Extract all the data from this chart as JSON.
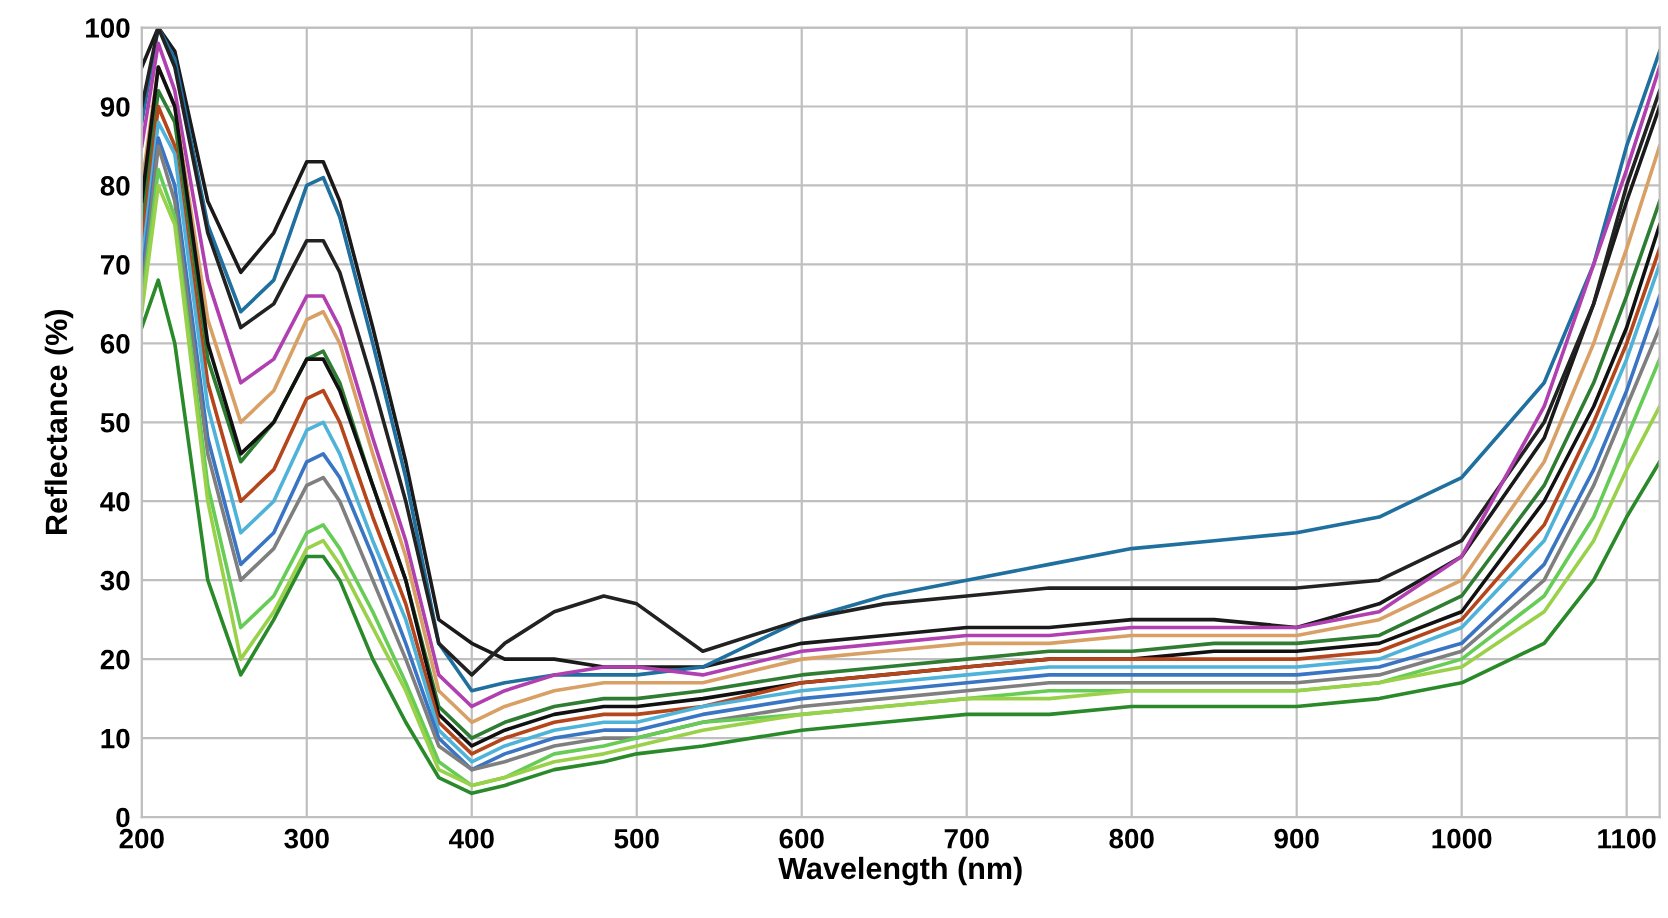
{
  "chart_data": {
    "type": "line",
    "xlabel": "Wavelength (nm)",
    "ylabel": "Reflectance (%)",
    "x": [
      200,
      210,
      220,
      240,
      260,
      280,
      300,
      310,
      320,
      340,
      360,
      380,
      400,
      420,
      450,
      480,
      500,
      540,
      600,
      650,
      700,
      750,
      800,
      850,
      900,
      950,
      1000,
      1050,
      1080,
      1100,
      1120
    ],
    "series": [
      {
        "color": "#1a1a1a",
        "values": [
          95,
          100,
          97,
          78,
          69,
          74,
          83,
          83,
          78,
          62,
          45,
          25,
          22,
          20,
          20,
          19,
          19,
          19,
          22,
          23,
          24,
          24,
          25,
          25,
          24,
          27,
          33,
          48,
          65,
          78,
          90
        ]
      },
      {
        "color": "#1f6f9f",
        "values": [
          88,
          100,
          96,
          75,
          64,
          68,
          80,
          81,
          76,
          60,
          43,
          22,
          16,
          17,
          18,
          18,
          18,
          19,
          25,
          28,
          30,
          32,
          34,
          35,
          36,
          38,
          43,
          55,
          70,
          85,
          97
        ]
      },
      {
        "color": "#222222",
        "values": [
          90,
          100,
          95,
          74,
          62,
          65,
          73,
          73,
          69,
          55,
          40,
          22,
          18,
          22,
          26,
          28,
          27,
          21,
          25,
          27,
          28,
          29,
          29,
          29,
          29,
          30,
          35,
          50,
          65,
          80,
          92
        ]
      },
      {
        "color": "#b040b0",
        "values": [
          85,
          98,
          92,
          68,
          55,
          58,
          66,
          66,
          62,
          48,
          35,
          18,
          14,
          16,
          18,
          19,
          19,
          18,
          21,
          22,
          23,
          23,
          24,
          24,
          24,
          26,
          33,
          52,
          70,
          82,
          95
        ]
      },
      {
        "color": "#d9a066",
        "values": [
          80,
          95,
          90,
          63,
          50,
          54,
          63,
          64,
          60,
          46,
          33,
          16,
          12,
          14,
          16,
          17,
          17,
          17,
          20,
          21,
          22,
          22,
          23,
          23,
          23,
          25,
          30,
          45,
          60,
          72,
          85
        ]
      },
      {
        "color": "#2e7d32",
        "values": [
          75,
          92,
          88,
          58,
          45,
          50,
          58,
          59,
          55,
          42,
          30,
          14,
          10,
          12,
          14,
          15,
          15,
          16,
          18,
          19,
          20,
          21,
          21,
          22,
          22,
          23,
          28,
          42,
          55,
          66,
          78
        ]
      },
      {
        "color": "#111111",
        "values": [
          78,
          95,
          90,
          60,
          46,
          50,
          58,
          58,
          54,
          42,
          30,
          13,
          9,
          11,
          13,
          14,
          14,
          15,
          17,
          18,
          19,
          20,
          20,
          21,
          21,
          22,
          26,
          40,
          52,
          62,
          75
        ]
      },
      {
        "color": "#b5451b",
        "values": [
          72,
          90,
          85,
          55,
          40,
          44,
          53,
          54,
          50,
          38,
          27,
          12,
          8,
          10,
          12,
          13,
          13,
          14,
          17,
          18,
          19,
          20,
          20,
          20,
          20,
          21,
          25,
          37,
          50,
          60,
          72
        ]
      },
      {
        "color": "#4fb3d9",
        "values": [
          70,
          88,
          84,
          52,
          36,
          40,
          49,
          50,
          46,
          35,
          25,
          11,
          7,
          9,
          11,
          12,
          12,
          14,
          16,
          17,
          18,
          19,
          19,
          19,
          19,
          20,
          24,
          35,
          48,
          58,
          70
        ]
      },
      {
        "color": "#3a75c4",
        "values": [
          68,
          86,
          80,
          48,
          32,
          36,
          45,
          46,
          43,
          33,
          22,
          10,
          6,
          8,
          10,
          11,
          11,
          13,
          15,
          16,
          17,
          18,
          18,
          18,
          18,
          19,
          22,
          32,
          44,
          54,
          66
        ]
      },
      {
        "color": "#7f7f7f",
        "values": [
          66,
          85,
          78,
          46,
          30,
          34,
          42,
          43,
          40,
          30,
          20,
          9,
          6,
          7,
          9,
          10,
          10,
          12,
          14,
          15,
          16,
          17,
          17,
          17,
          17,
          18,
          21,
          30,
          42,
          52,
          62
        ]
      },
      {
        "color": "#66cc55",
        "values": [
          65,
          82,
          76,
          42,
          24,
          28,
          36,
          37,
          34,
          26,
          17,
          7,
          4,
          5,
          8,
          9,
          10,
          12,
          13,
          14,
          15,
          16,
          16,
          16,
          16,
          17,
          20,
          28,
          38,
          48,
          58
        ]
      },
      {
        "color": "#9ad14b",
        "values": [
          64,
          80,
          75,
          40,
          20,
          26,
          34,
          35,
          32,
          24,
          16,
          6,
          4,
          5,
          7,
          8,
          9,
          11,
          13,
          14,
          15,
          15,
          16,
          16,
          16,
          17,
          19,
          26,
          35,
          44,
          52
        ]
      },
      {
        "color": "#2a8a2a",
        "values": [
          62,
          68,
          60,
          30,
          18,
          25,
          33,
          33,
          30,
          20,
          12,
          5,
          3,
          4,
          6,
          7,
          8,
          9,
          11,
          12,
          13,
          13,
          14,
          14,
          14,
          15,
          17,
          22,
          30,
          38,
          45
        ]
      }
    ],
    "xlim": [
      200,
      1120
    ],
    "xticks": [
      200,
      300,
      400,
      500,
      600,
      700,
      800,
      900,
      1000,
      1100
    ],
    "ylim": [
      0,
      100
    ],
    "yticks": [
      0,
      10,
      20,
      30,
      40,
      50,
      60,
      70,
      80,
      90,
      100
    ],
    "grid": true,
    "legend": false
  }
}
